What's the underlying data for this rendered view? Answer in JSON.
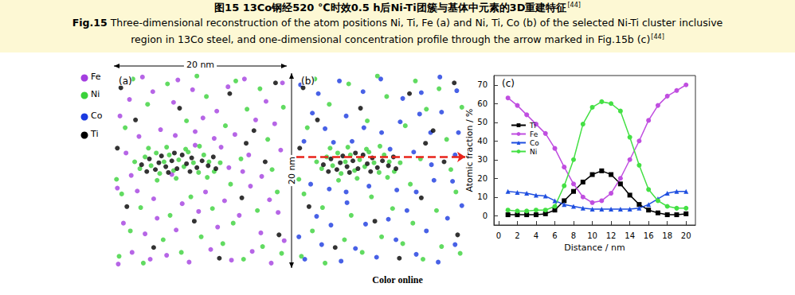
{
  "caption": {
    "cn_label": "图15",
    "cn": "13Co钢经520 ℃时效0.5 h后Ni-Ti团簇与基体中元素的3D重建特征",
    "en_label": "Fig.15",
    "en_line1": "Three-dimensional reconstruction of the atom positions Ni, Ti, Fe (a) and Ni, Ti, Co (b) of the selected Ni-Ti cluster inclusive",
    "en_line2": "region in 13Co steel, and one-dimensional concentration profile through the arrow marked in Fig.15b (c)",
    "ref": "[44]"
  },
  "footer": "Color online",
  "scale_bars": {
    "horizontal": "20 nm",
    "vertical": "20 nm"
  },
  "atoms": {
    "legend": [
      "Fe",
      "Ni",
      "Co",
      "Ti"
    ],
    "colors": {
      "Fe": "#a43ee0",
      "Ni": "#3ad23a",
      "Co": "#1a3ae0",
      "Ti": "#000000"
    },
    "positions": {
      "Ti": [
        [
          3.2,
          10.6
        ],
        [
          4.1,
          11.2
        ],
        [
          4.8,
          10.1
        ],
        [
          5.5,
          11.5
        ],
        [
          6.0,
          10.4
        ],
        [
          6.7,
          11.0
        ],
        [
          7.3,
          10.2
        ],
        [
          7.9,
          11.6
        ],
        [
          8.4,
          10.7
        ],
        [
          9.0,
          11.3
        ],
        [
          9.6,
          10.3
        ],
        [
          10.2,
          11.0
        ],
        [
          10.9,
          10.5
        ],
        [
          11.5,
          11.4
        ],
        [
          5.2,
          10.8
        ],
        [
          7.0,
          11.8
        ],
        [
          8.8,
          9.9
        ],
        [
          6.3,
          9.8
        ],
        [
          3.8,
          9.9
        ],
        [
          11.8,
          10.2
        ],
        [
          0.8,
          18.5
        ],
        [
          2.5,
          15.2
        ],
        [
          13.4,
          17.9
        ],
        [
          16.2,
          14.1
        ],
        [
          18.7,
          19.0
        ],
        [
          1.5,
          6.3
        ],
        [
          4.6,
          2.1
        ],
        [
          9.3,
          4.8
        ],
        [
          14.8,
          7.2
        ],
        [
          19.1,
          3.4
        ],
        [
          12.2,
          1.0
        ],
        [
          17.5,
          10.9
        ],
        [
          15.3,
          12.8
        ],
        [
          7.6,
          16.4
        ],
        [
          0.4,
          12.3
        ]
      ],
      "Ni": [
        [
          3.0,
          10.2
        ],
        [
          3.6,
          11.4
        ],
        [
          4.3,
          10.5
        ],
        [
          4.9,
          11.8
        ],
        [
          5.3,
          9.7
        ],
        [
          5.8,
          10.9
        ],
        [
          6.4,
          11.6
        ],
        [
          6.9,
          10.0
        ],
        [
          7.5,
          11.1
        ],
        [
          8.1,
          10.4
        ],
        [
          8.6,
          11.9
        ],
        [
          9.2,
          10.8
        ],
        [
          9.8,
          9.8
        ],
        [
          10.4,
          11.6
        ],
        [
          11.0,
          10.9
        ],
        [
          11.6,
          9.9
        ],
        [
          12.3,
          10.8
        ],
        [
          2.4,
          10.9
        ],
        [
          4.0,
          12.3
        ],
        [
          6.1,
          12.4
        ],
        [
          8.3,
          12.2
        ],
        [
          9.9,
          12.5
        ],
        [
          7.2,
          9.2
        ],
        [
          5.0,
          9.0
        ],
        [
          10.8,
          9.3
        ],
        [
          0.6,
          1.2
        ],
        [
          1.9,
          3.8
        ],
        [
          3.4,
          0.5
        ],
        [
          5.7,
          2.9
        ],
        [
          7.8,
          1.6
        ],
        [
          10.1,
          3.2
        ],
        [
          12.6,
          2.5
        ],
        [
          15.0,
          0.9
        ],
        [
          17.2,
          2.2
        ],
        [
          19.4,
          1.5
        ],
        [
          0.9,
          7.6
        ],
        [
          3.1,
          6.2
        ],
        [
          6.5,
          5.4
        ],
        [
          8.9,
          7.3
        ],
        [
          11.4,
          6.1
        ],
        [
          13.8,
          4.6
        ],
        [
          16.6,
          5.9
        ],
        [
          18.9,
          7.8
        ],
        [
          1.3,
          14.4
        ],
        [
          3.9,
          16.8
        ],
        [
          6.2,
          18.9
        ],
        [
          8.4,
          15.1
        ],
        [
          10.7,
          17.6
        ],
        [
          12.9,
          14.6
        ],
        [
          15.4,
          16.3
        ],
        [
          17.8,
          13.2
        ],
        [
          19.6,
          16.5
        ],
        [
          2.2,
          19.4
        ],
        [
          14.1,
          19.2
        ],
        [
          16.9,
          18.4
        ],
        [
          14.7,
          11.2
        ],
        [
          18.3,
          10.1
        ],
        [
          0.3,
          9.1
        ],
        [
          13.5,
          8.6
        ],
        [
          9.6,
          19.7
        ]
      ],
      "Fe": [
        [
          0.5,
          0.4
        ],
        [
          2.1,
          1.6
        ],
        [
          4.2,
          0.9
        ],
        [
          6.1,
          1.3
        ],
        [
          8.7,
          0.6
        ],
        [
          11.2,
          1.9
        ],
        [
          13.6,
          0.8
        ],
        [
          16.0,
          1.7
        ],
        [
          18.2,
          0.5
        ],
        [
          19.7,
          2.8
        ],
        [
          1.1,
          4.6
        ],
        [
          3.6,
          3.5
        ],
        [
          5.0,
          5.1
        ],
        [
          7.2,
          3.9
        ],
        [
          9.8,
          5.8
        ],
        [
          12.0,
          4.2
        ],
        [
          14.5,
          5.4
        ],
        [
          17.0,
          3.6
        ],
        [
          19.0,
          5.7
        ],
        [
          0.4,
          8.2
        ],
        [
          2.7,
          7.9
        ],
        [
          4.6,
          7.1
        ],
        [
          7.9,
          6.6
        ],
        [
          10.6,
          7.8
        ],
        [
          12.8,
          6.9
        ],
        [
          15.8,
          8.4
        ],
        [
          18.0,
          7.0
        ],
        [
          1.4,
          11.8
        ],
        [
          13.3,
          10.3
        ],
        [
          15.6,
          11.6
        ],
        [
          17.1,
          9.4
        ],
        [
          19.3,
          12.1
        ],
        [
          0.7,
          15.6
        ],
        [
          2.9,
          13.5
        ],
        [
          5.4,
          14.2
        ],
        [
          7.1,
          13.6
        ],
        [
          9.4,
          14.0
        ],
        [
          11.6,
          13.3
        ],
        [
          14.0,
          13.7
        ],
        [
          16.4,
          15.2
        ],
        [
          18.6,
          14.8
        ],
        [
          1.8,
          17.3
        ],
        [
          4.5,
          18.1
        ],
        [
          6.9,
          17.0
        ],
        [
          9.1,
          18.3
        ],
        [
          11.9,
          16.1
        ],
        [
          13.2,
          18.6
        ],
        [
          15.1,
          19.4
        ],
        [
          17.6,
          17.1
        ],
        [
          19.5,
          19.0
        ],
        [
          3.3,
          19.6
        ],
        [
          7.4,
          19.3
        ],
        [
          10.3,
          15.4
        ],
        [
          6.7,
          9.6
        ],
        [
          9.4,
          12.6
        ],
        [
          14.9,
          9.9
        ],
        [
          2.0,
          9.5
        ],
        [
          12.4,
          12.4
        ]
      ],
      "Co": [
        [
          1.0,
          0.9
        ],
        [
          3.0,
          2.4
        ],
        [
          5.3,
          0.7
        ],
        [
          7.0,
          2.0
        ],
        [
          9.5,
          1.1
        ],
        [
          11.8,
          2.9
        ],
        [
          14.2,
          1.4
        ],
        [
          16.8,
          0.6
        ],
        [
          18.8,
          2.4
        ],
        [
          0.3,
          3.2
        ],
        [
          2.4,
          5.3
        ],
        [
          4.1,
          4.4
        ],
        [
          6.0,
          6.7
        ],
        [
          8.2,
          4.5
        ],
        [
          10.9,
          5.0
        ],
        [
          13.1,
          5.9
        ],
        [
          15.4,
          3.8
        ],
        [
          17.9,
          5.1
        ],
        [
          19.6,
          6.4
        ],
        [
          1.7,
          8.6
        ],
        [
          3.9,
          8.1
        ],
        [
          5.9,
          7.8
        ],
        [
          8.6,
          8.4
        ],
        [
          11.9,
          8.0
        ],
        [
          14.2,
          7.8
        ],
        [
          16.3,
          9.0
        ],
        [
          18.5,
          8.9
        ],
        [
          0.9,
          13.0
        ],
        [
          13.9,
          11.9
        ],
        [
          16.0,
          10.6
        ],
        [
          18.8,
          11.6
        ],
        [
          1.9,
          15.9
        ],
        [
          3.4,
          14.3
        ],
        [
          5.9,
          15.6
        ],
        [
          8.0,
          14.4
        ],
        [
          10.1,
          13.9
        ],
        [
          12.3,
          15.0
        ],
        [
          14.6,
          15.8
        ],
        [
          17.2,
          16.0
        ],
        [
          19.2,
          13.9
        ],
        [
          0.5,
          18.8
        ],
        [
          2.6,
          17.9
        ],
        [
          5.1,
          19.2
        ],
        [
          7.9,
          18.1
        ],
        [
          10.0,
          19.4
        ],
        [
          12.6,
          17.4
        ],
        [
          14.8,
          18.0
        ],
        [
          17.0,
          19.6
        ],
        [
          19.0,
          18.2
        ],
        [
          4.4,
          12.9
        ],
        [
          11.1,
          12.2
        ],
        [
          6.6,
          13.0
        ],
        [
          15.9,
          13.9
        ]
      ]
    }
  },
  "chart_data": [
    {
      "type": "scatter",
      "title": "(a)",
      "series": [
        "Fe",
        "Ni",
        "Ti"
      ],
      "xlim": [
        0,
        20
      ],
      "ylim": [
        0,
        20
      ],
      "tick_labels": false
    },
    {
      "type": "scatter",
      "title": "(b)",
      "series": [
        "Co",
        "Ni",
        "Ti"
      ],
      "xlim": [
        0,
        20
      ],
      "ylim": [
        0,
        20
      ],
      "tick_labels": false,
      "profile_y": 11.4
    },
    {
      "type": "line",
      "title": "(c)",
      "x_label": "Distance / nm",
      "y_label": "Atomic fraction / %",
      "x": [
        1,
        2,
        3,
        4,
        5,
        6,
        7,
        8,
        9,
        10,
        11,
        12,
        13,
        14,
        15,
        16,
        17,
        18,
        19,
        20
      ],
      "series": [
        {
          "name": "Ti",
          "color": "#000000",
          "marker": "square",
          "line_style": "solid",
          "values": [
            0.5,
            0.5,
            0.5,
            0.5,
            1,
            3,
            8,
            13,
            18,
            22,
            24,
            22,
            17,
            11,
            6,
            3,
            1.5,
            0.5,
            0.5,
            1
          ]
        },
        {
          "name": "Fe",
          "color": "#c04ee0",
          "marker": "circle",
          "line_style": "solid",
          "values": [
            63,
            59,
            54,
            49,
            44,
            36,
            26,
            17,
            10,
            7,
            8,
            12,
            20,
            30,
            40,
            51,
            59,
            64,
            67,
            70
          ]
        },
        {
          "name": "Co",
          "color": "#1f4fe0",
          "marker": "triangle",
          "line_style": "solid",
          "values": [
            13,
            12.5,
            12,
            11,
            10.5,
            8,
            6,
            5,
            4,
            3.5,
            3.5,
            3.5,
            3.5,
            3.5,
            4,
            6,
            9,
            12,
            13,
            13
          ]
        },
        {
          "name": "Ni",
          "color": "#44e044",
          "marker": "circle",
          "line_style": "solid",
          "values": [
            3,
            2.5,
            2.5,
            3,
            3,
            5,
            16,
            30,
            49,
            58,
            61,
            60,
            56,
            42,
            27,
            14,
            8,
            5,
            4,
            4
          ]
        }
      ],
      "xlim": [
        -0.5,
        21
      ],
      "ylim": [
        -5,
        75
      ],
      "xticks": [
        0,
        2,
        4,
        6,
        8,
        10,
        12,
        14,
        16,
        18,
        20
      ],
      "yticks": [
        0,
        10,
        20,
        30,
        40,
        50,
        60,
        70
      ],
      "grid": false,
      "legend": "upper left"
    }
  ]
}
